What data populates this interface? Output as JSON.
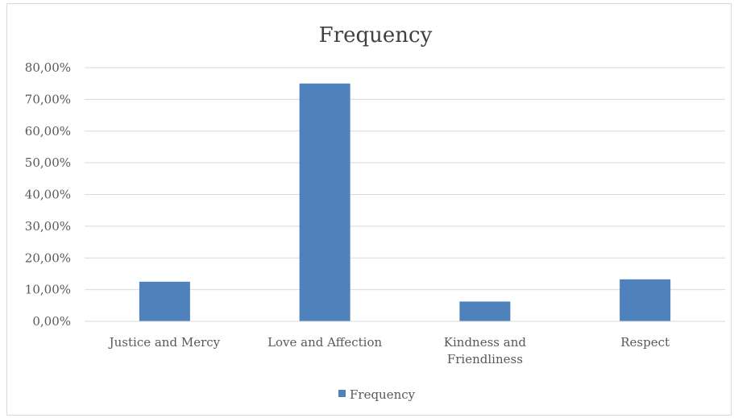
{
  "chart_data": {
    "type": "bar",
    "title": "Frequency",
    "categories": [
      [
        "Justice and Mercy"
      ],
      [
        "Love and Affection"
      ],
      [
        "Kindness and",
        "Friendliness"
      ],
      [
        "Respect"
      ]
    ],
    "series": [
      {
        "name": "Frequency",
        "values": [
          12.5,
          75.0,
          6.25,
          13.25
        ],
        "color": "#4f81bd"
      }
    ],
    "yticks": [
      "0,00%",
      "10,00%",
      "20,00%",
      "30,00%",
      "40,00%",
      "50,00%",
      "60,00%",
      "70,00%",
      "80,00%"
    ],
    "ylim": [
      0,
      80
    ],
    "grid": true,
    "legend_position": "bottom",
    "xlabel": "",
    "ylabel": ""
  }
}
